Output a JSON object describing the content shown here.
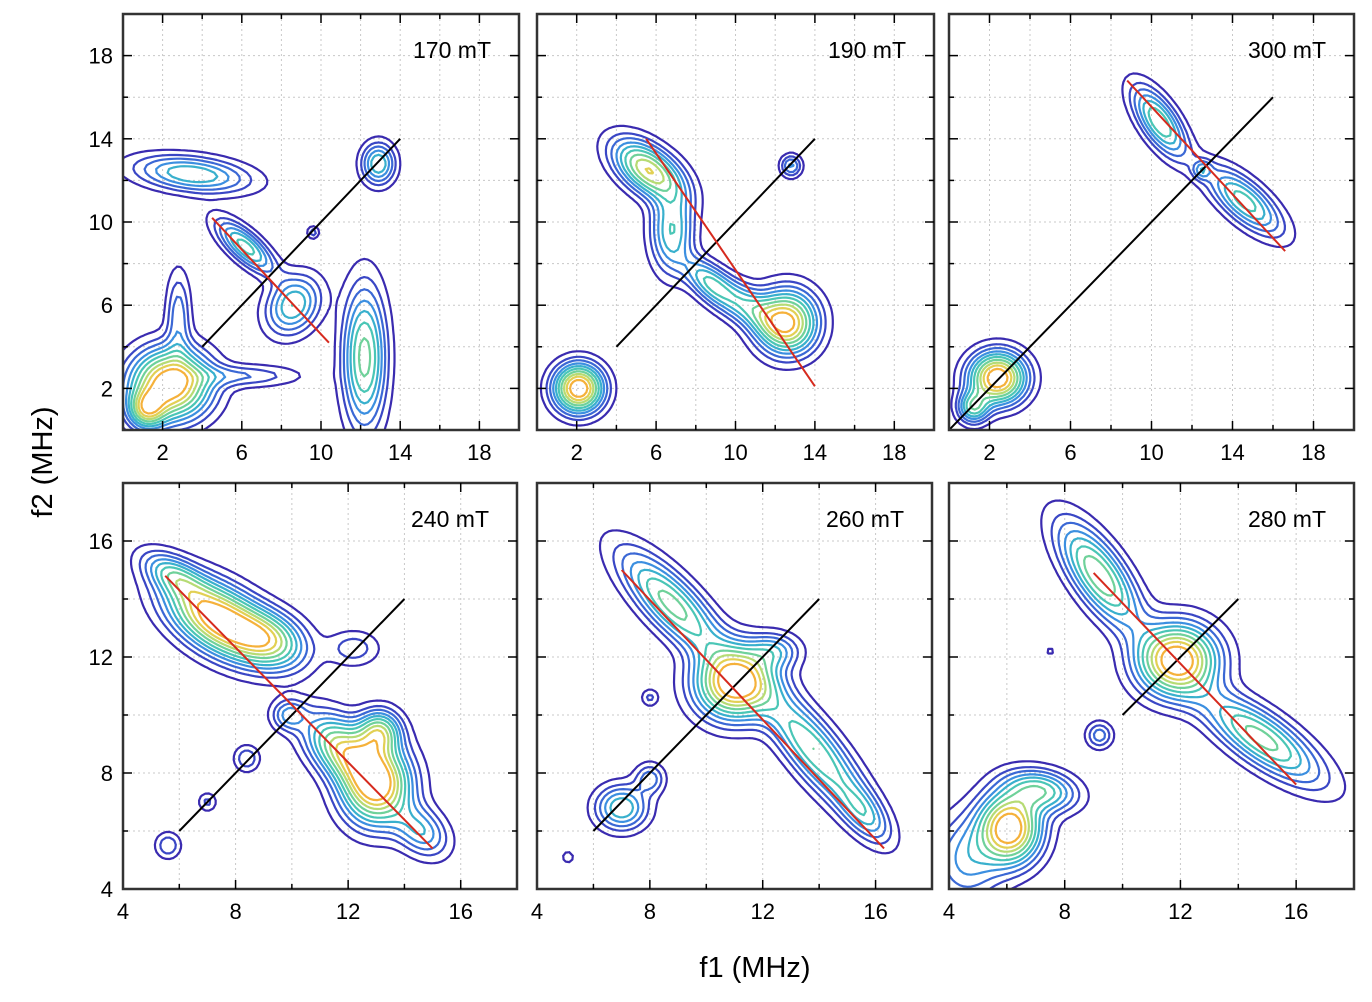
{
  "figure": {
    "xlabel": "f1 (MHz)",
    "ylabel": "f2 (MHz)"
  },
  "colors": {
    "contour_scale": [
      "#3a2bb0",
      "#3a55cf",
      "#3c8fe0",
      "#37c1c4",
      "#6fd19a",
      "#d9e061",
      "#f5b13a"
    ],
    "diagonal_line": "#000000",
    "fit_line": "#d62a1e",
    "grid": "#c8c8c8",
    "frame": "#333333"
  },
  "chart_data": [
    {
      "type": "contour",
      "field_label": "170 mT",
      "xlim": [
        0,
        20
      ],
      "ylim": [
        0,
        20
      ],
      "xticks": [
        2,
        6,
        10,
        14,
        18
      ],
      "yticks": [
        2,
        6,
        10,
        14,
        18
      ],
      "grid": true,
      "diagonal": [
        [
          4,
          4
        ],
        [
          14,
          14
        ]
      ],
      "fit_line": [
        [
          4.5,
          10.2
        ],
        [
          10.4,
          4.2
        ]
      ],
      "peaks": [
        {
          "x": 2.4,
          "y": 2.2,
          "sx": 1.3,
          "sy": 1.1,
          "amp": 1.0,
          "angle": 0
        },
        {
          "x": 1.2,
          "y": 1.0,
          "sx": 0.6,
          "sy": 0.6,
          "amp": 0.6,
          "angle": 0
        },
        {
          "x": 2.8,
          "y": 5.5,
          "sx": 0.4,
          "sy": 1.4,
          "amp": 0.25,
          "angle": 0
        },
        {
          "x": 6.0,
          "y": 2.6,
          "sx": 1.9,
          "sy": 0.35,
          "amp": 0.2,
          "angle": 0
        },
        {
          "x": 3.5,
          "y": 12.3,
          "sx": 1.9,
          "sy": 0.55,
          "amp": 0.45,
          "angle": -6
        },
        {
          "x": 6.2,
          "y": 8.8,
          "sx": 1.2,
          "sy": 0.45,
          "amp": 0.5,
          "angle": -40
        },
        {
          "x": 8.6,
          "y": 6.0,
          "sx": 0.8,
          "sy": 1.0,
          "amp": 0.45,
          "angle": -40
        },
        {
          "x": 12.2,
          "y": 3.5,
          "sx": 0.7,
          "sy": 2.2,
          "amp": 0.6,
          "angle": 0
        },
        {
          "x": 12.9,
          "y": 12.8,
          "sx": 0.55,
          "sy": 0.65,
          "amp": 0.45,
          "angle": 0
        },
        {
          "x": 9.6,
          "y": 9.5,
          "sx": 0.2,
          "sy": 0.2,
          "amp": 0.18,
          "angle": 0
        }
      ]
    },
    {
      "type": "contour",
      "field_label": "190 mT",
      "xlim": [
        0,
        20
      ],
      "ylim": [
        0,
        20
      ],
      "xticks": [
        2,
        6,
        10,
        14,
        18
      ],
      "yticks": [
        2,
        6,
        10,
        14,
        18
      ],
      "grid": true,
      "diagonal": [
        [
          4,
          4
        ],
        [
          14,
          14
        ]
      ],
      "fit_line": [
        [
          5.5,
          14.0
        ],
        [
          14.0,
          2.1
        ]
      ],
      "peaks": [
        {
          "x": 2.1,
          "y": 2.0,
          "sx": 0.8,
          "sy": 0.75,
          "amp": 1.0,
          "angle": 0
        },
        {
          "x": 5.6,
          "y": 12.5,
          "sx": 1.3,
          "sy": 0.7,
          "amp": 0.75,
          "angle": -35
        },
        {
          "x": 6.8,
          "y": 9.6,
          "sx": 0.7,
          "sy": 1.3,
          "amp": 0.45,
          "angle": 0
        },
        {
          "x": 8.6,
          "y": 7.2,
          "sx": 1.0,
          "sy": 0.5,
          "amp": 0.35,
          "angle": -40
        },
        {
          "x": 10.5,
          "y": 6.0,
          "sx": 1.5,
          "sy": 0.6,
          "amp": 0.4,
          "angle": -30
        },
        {
          "x": 12.6,
          "y": 5.2,
          "sx": 1.0,
          "sy": 1.0,
          "amp": 0.85,
          "angle": -30
        },
        {
          "x": 12.8,
          "y": 12.7,
          "sx": 0.35,
          "sy": 0.35,
          "amp": 0.3,
          "angle": 0
        }
      ]
    },
    {
      "type": "contour",
      "field_label": "300 mT",
      "xlim": [
        0,
        20
      ],
      "ylim": [
        0,
        20
      ],
      "xticks": [
        2,
        6,
        10,
        14,
        18
      ],
      "yticks": [
        2,
        6,
        10,
        14,
        18
      ],
      "grid": true,
      "diagonal": [
        [
          0,
          0
        ],
        [
          16,
          16
        ]
      ],
      "fit_line": [
        [
          8.8,
          16.8
        ],
        [
          16.6,
          8.6
        ]
      ],
      "peaks": [
        {
          "x": 2.4,
          "y": 2.5,
          "sx": 0.9,
          "sy": 0.8,
          "amp": 1.0,
          "angle": 0
        },
        {
          "x": 1.2,
          "y": 1.1,
          "sx": 0.5,
          "sy": 0.5,
          "amp": 0.5,
          "angle": 0
        },
        {
          "x": 10.4,
          "y": 14.8,
          "sx": 1.3,
          "sy": 0.55,
          "amp": 0.55,
          "angle": -55
        },
        {
          "x": 14.6,
          "y": 11.0,
          "sx": 1.5,
          "sy": 0.6,
          "amp": 0.5,
          "angle": -40
        },
        {
          "x": 12.5,
          "y": 12.5,
          "sx": 0.3,
          "sy": 0.3,
          "amp": 0.25,
          "angle": 0
        }
      ]
    },
    {
      "type": "contour",
      "field_label": "240 mT",
      "xlim": [
        4,
        18
      ],
      "ylim": [
        4,
        18
      ],
      "xticks": [
        4,
        8,
        12,
        16
      ],
      "yticks": [
        4,
        8,
        12,
        16
      ],
      "grid": true,
      "diagonal": [
        [
          6,
          6
        ],
        [
          14,
          14
        ]
      ],
      "fit_line": [
        [
          5.5,
          14.8
        ],
        [
          15.0,
          5.4
        ]
      ],
      "peaks": [
        {
          "x": 7.4,
          "y": 13.3,
          "sx": 1.3,
          "sy": 0.7,
          "amp": 1.0,
          "angle": -30
        },
        {
          "x": 5.8,
          "y": 14.8,
          "sx": 0.8,
          "sy": 0.4,
          "amp": 0.4,
          "angle": -30
        },
        {
          "x": 9.2,
          "y": 12.6,
          "sx": 0.9,
          "sy": 0.6,
          "amp": 0.55,
          "angle": -20
        },
        {
          "x": 13.0,
          "y": 7.6,
          "sx": 0.8,
          "sy": 0.9,
          "amp": 0.95,
          "angle": 0
        },
        {
          "x": 11.8,
          "y": 8.8,
          "sx": 1.0,
          "sy": 0.6,
          "amp": 0.7,
          "angle": -40
        },
        {
          "x": 13.1,
          "y": 9.4,
          "sx": 0.5,
          "sy": 0.5,
          "amp": 0.6,
          "angle": 0
        },
        {
          "x": 14.6,
          "y": 6.0,
          "sx": 0.7,
          "sy": 0.5,
          "amp": 0.35,
          "angle": -40
        },
        {
          "x": 9.9,
          "y": 10.0,
          "sx": 0.4,
          "sy": 0.35,
          "amp": 0.3,
          "angle": 0
        },
        {
          "x": 8.4,
          "y": 8.5,
          "sx": 0.3,
          "sy": 0.3,
          "amp": 0.2,
          "angle": 0
        },
        {
          "x": 7.0,
          "y": 7.0,
          "sx": 0.22,
          "sy": 0.22,
          "amp": 0.15,
          "angle": 0
        },
        {
          "x": 5.6,
          "y": 5.5,
          "sx": 0.3,
          "sy": 0.3,
          "amp": 0.2,
          "angle": 0
        },
        {
          "x": 12.2,
          "y": 12.3,
          "sx": 0.6,
          "sy": 0.4,
          "amp": 0.18,
          "angle": 0
        }
      ]
    },
    {
      "type": "contour",
      "field_label": "260 mT",
      "xlim": [
        4,
        18
      ],
      "ylim": [
        4,
        18
      ],
      "xticks": [
        4,
        8,
        12,
        16
      ],
      "yticks": [
        4,
        8,
        12,
        16
      ],
      "grid": true,
      "diagonal": [
        [
          6,
          6
        ],
        [
          14,
          14
        ]
      ],
      "fit_line": [
        [
          7.0,
          15.0
        ],
        [
          16.3,
          5.4
        ]
      ],
      "peaks": [
        {
          "x": 11.0,
          "y": 11.1,
          "sx": 0.9,
          "sy": 0.8,
          "amp": 1.0,
          "angle": 0
        },
        {
          "x": 8.8,
          "y": 13.8,
          "sx": 1.6,
          "sy": 0.55,
          "amp": 0.6,
          "angle": -45
        },
        {
          "x": 13.8,
          "y": 8.8,
          "sx": 1.8,
          "sy": 0.55,
          "amp": 0.55,
          "angle": -50
        },
        {
          "x": 15.6,
          "y": 6.6,
          "sx": 0.8,
          "sy": 0.4,
          "amp": 0.3,
          "angle": -50
        },
        {
          "x": 7.0,
          "y": 6.8,
          "sx": 0.6,
          "sy": 0.5,
          "amp": 0.45,
          "angle": 0
        },
        {
          "x": 8.0,
          "y": 7.8,
          "sx": 0.35,
          "sy": 0.35,
          "amp": 0.25,
          "angle": 0
        },
        {
          "x": 12.4,
          "y": 12.2,
          "sx": 0.6,
          "sy": 0.4,
          "amp": 0.3,
          "angle": 0
        },
        {
          "x": 8.0,
          "y": 10.6,
          "sx": 0.2,
          "sy": 0.2,
          "amp": 0.15,
          "angle": 0
        },
        {
          "x": 5.1,
          "y": 5.1,
          "sx": 0.15,
          "sy": 0.15,
          "amp": 0.12,
          "angle": 0
        }
      ]
    },
    {
      "type": "contour",
      "field_label": "280 mT",
      "xlim": [
        4,
        18
      ],
      "ylim": [
        4,
        18
      ],
      "xticks": [
        4,
        8,
        12,
        16
      ],
      "yticks": [
        4,
        8,
        12,
        16
      ],
      "grid": true,
      "diagonal": [
        [
          10,
          10
        ],
        [
          14,
          14
        ]
      ],
      "fit_line": [
        [
          9.0,
          14.9
        ],
        [
          16.0,
          7.6
        ]
      ],
      "peaks": [
        {
          "x": 11.9,
          "y": 11.9,
          "sx": 0.9,
          "sy": 0.8,
          "amp": 1.0,
          "angle": 0
        },
        {
          "x": 9.2,
          "y": 14.8,
          "sx": 1.4,
          "sy": 0.55,
          "amp": 0.65,
          "angle": -55
        },
        {
          "x": 14.8,
          "y": 9.2,
          "sx": 1.6,
          "sy": 0.55,
          "amp": 0.6,
          "angle": -35
        },
        {
          "x": 6.1,
          "y": 6.1,
          "sx": 0.7,
          "sy": 0.8,
          "amp": 1.0,
          "angle": 0
        },
        {
          "x": 7.2,
          "y": 7.4,
          "sx": 0.8,
          "sy": 0.45,
          "amp": 0.5,
          "angle": -10
        },
        {
          "x": 4.6,
          "y": 5.0,
          "sx": 0.8,
          "sy": 1.0,
          "amp": 0.3,
          "angle": 0
        },
        {
          "x": 9.2,
          "y": 9.3,
          "sx": 0.3,
          "sy": 0.3,
          "amp": 0.25,
          "angle": 0
        },
        {
          "x": 7.5,
          "y": 12.2,
          "sx": 0.1,
          "sy": 0.1,
          "amp": 0.1,
          "angle": 0
        }
      ]
    }
  ]
}
